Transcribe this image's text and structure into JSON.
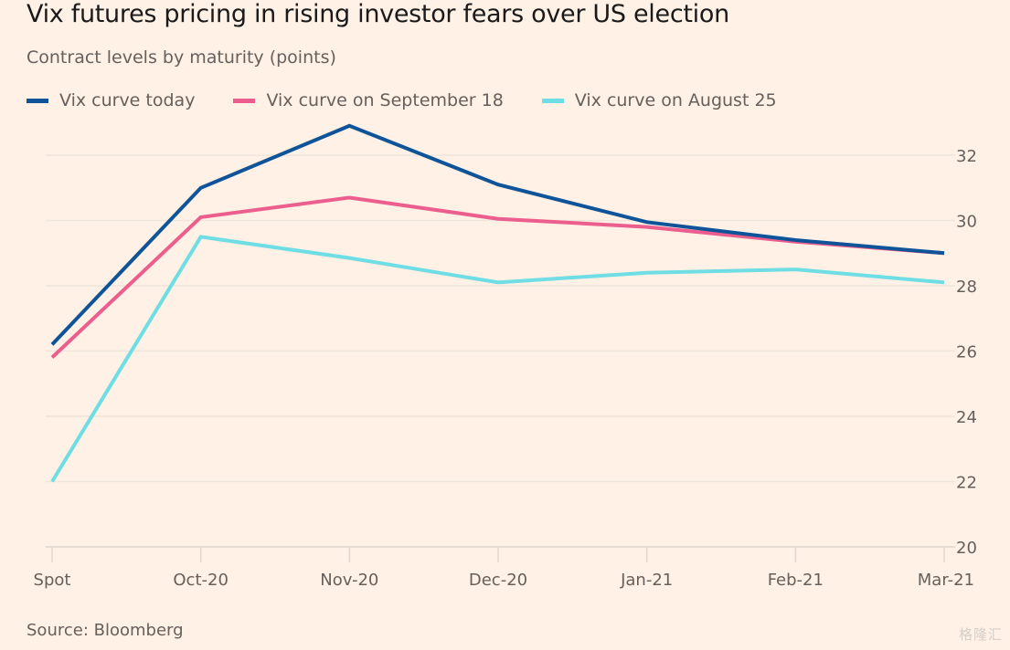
{
  "header": {
    "title": "Vix futures pricing in rising investor fears over US election",
    "subtitle": "Contract levels by maturity (points)"
  },
  "legend": [
    {
      "label": "Vix curve today",
      "color": "#0f5499"
    },
    {
      "label": "Vix curve on September 18",
      "color": "#eb5e8d"
    },
    {
      "label": "Vix curve on August 25",
      "color": "#6fdde4"
    }
  ],
  "footer": {
    "source": "Source: Bloomberg",
    "watermark": "格隆汇"
  },
  "chart_data": {
    "type": "line",
    "title": "Vix futures pricing in rising investor fears over US election",
    "subtitle": "Contract levels by maturity (points)",
    "xlabel": "",
    "ylabel": "",
    "categories": [
      "Spot",
      "Oct-20",
      "Nov-20",
      "Dec-20",
      "Jan-21",
      "Feb-21",
      "Mar-21"
    ],
    "ylim": [
      20,
      32
    ],
    "yticks": [
      20,
      22,
      24,
      26,
      28,
      30,
      32
    ],
    "y_axis_side": "right",
    "grid": true,
    "legend_position": "top-left",
    "series": [
      {
        "name": "Vix curve today",
        "color": "#0f5499",
        "values": [
          26.2,
          31.0,
          32.9,
          31.1,
          29.95,
          29.4,
          29.0
        ]
      },
      {
        "name": "Vix curve on September 18",
        "color": "#eb5e8d",
        "values": [
          25.8,
          30.1,
          30.7,
          30.05,
          29.8,
          29.35,
          29.0
        ]
      },
      {
        "name": "Vix curve on August 25",
        "color": "#6fdde4",
        "values": [
          22.0,
          29.5,
          28.85,
          28.1,
          28.4,
          28.5,
          28.1
        ]
      }
    ],
    "source": "Source: Bloomberg"
  }
}
